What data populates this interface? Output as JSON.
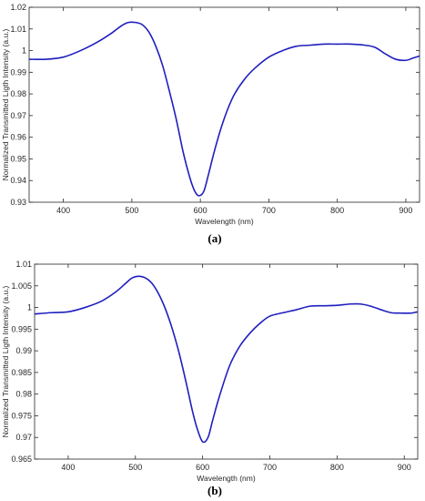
{
  "chart_data": [
    {
      "type": "line",
      "caption": "(a)",
      "xlabel": "Wavelength (nm)",
      "ylabel": "Normalized Transmitted Ligth Intensity (a.u.)",
      "xlim": [
        350,
        920
      ],
      "ylim": [
        0.93,
        1.02
      ],
      "xticks": [
        400,
        500,
        600,
        700,
        800,
        900
      ],
      "yticks": [
        0.93,
        0.94,
        0.95,
        0.96,
        0.97,
        0.98,
        0.99,
        1,
        1.01,
        1.02
      ],
      "ytick_labels": [
        "0.93",
        "0.94",
        "0.95",
        "0.96",
        "0.97",
        "0.98",
        "0.99",
        "1",
        "1.01",
        "1.02"
      ],
      "line_color": "#1f1fbf",
      "grid": false,
      "x": [
        350,
        375,
        400,
        425,
        450,
        470,
        485,
        495,
        505,
        515,
        525,
        535,
        545,
        555,
        565,
        575,
        585,
        592,
        598,
        605,
        612,
        620,
        630,
        640,
        650,
        665,
        680,
        700,
        720,
        740,
        760,
        780,
        800,
        820,
        840,
        855,
        870,
        885,
        900,
        910,
        920
      ],
      "y": [
        0.996,
        0.996,
        0.997,
        1.0,
        1.004,
        1.008,
        1.0115,
        1.013,
        1.013,
        1.012,
        1.0085,
        1.002,
        0.993,
        0.981,
        0.968,
        0.953,
        0.941,
        0.935,
        0.933,
        0.935,
        0.943,
        0.953,
        0.964,
        0.973,
        0.98,
        0.987,
        0.992,
        0.997,
        1.0,
        1.002,
        1.0025,
        1.003,
        1.003,
        1.003,
        1.0025,
        1.0015,
        0.9985,
        0.996,
        0.9955,
        0.9965,
        0.9975
      ]
    },
    {
      "type": "line",
      "caption": "(b)",
      "xlabel": "Wavelength (nm)",
      "ylabel": "Normalized Transmitted Ligth Intensity (a.u.)",
      "xlim": [
        350,
        920
      ],
      "ylim": [
        0.965,
        1.01
      ],
      "xticks": [
        400,
        500,
        600,
        700,
        800,
        900
      ],
      "yticks": [
        0.965,
        0.97,
        0.975,
        0.98,
        0.985,
        0.99,
        0.995,
        1,
        1.005,
        1.01
      ],
      "ytick_labels": [
        "0.965",
        "0.97",
        "0.975",
        "0.98",
        "0.985",
        "0.99",
        "0.995",
        "1",
        "1.005",
        "1.01"
      ],
      "line_color": "#1f1fbf",
      "grid": false,
      "x": [
        350,
        375,
        400,
        425,
        450,
        470,
        485,
        495,
        505,
        515,
        525,
        535,
        545,
        555,
        565,
        575,
        585,
        592,
        600,
        608,
        615,
        625,
        640,
        655,
        670,
        685,
        700,
        720,
        740,
        760,
        780,
        800,
        820,
        835,
        850,
        865,
        880,
        895,
        910,
        920
      ],
      "y": [
        0.9985,
        0.9988,
        0.999,
        1.0,
        1.0015,
        1.0035,
        1.0055,
        1.0068,
        1.0072,
        1.0068,
        1.0055,
        1.003,
        0.9995,
        0.995,
        0.9895,
        0.983,
        0.976,
        0.972,
        0.969,
        0.97,
        0.974,
        0.9795,
        0.9865,
        0.991,
        0.994,
        0.9963,
        0.998,
        0.9988,
        0.9995,
        1.0003,
        1.0004,
        1.0005,
        1.0008,
        1.0008,
        1.0003,
        0.9995,
        0.9988,
        0.9987,
        0.9987,
        0.999
      ]
    }
  ]
}
